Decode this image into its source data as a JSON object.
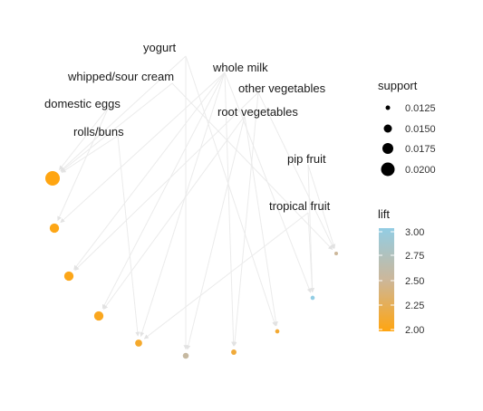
{
  "item_labels": [
    "yogurt",
    "whole milk",
    "whipped/sour cream",
    "other vegetables",
    "domestic eggs",
    "root vegetables",
    "rolls/buns",
    "pip fruit",
    "tropical fruit"
  ],
  "rules": [
    {
      "support": 0.0205,
      "lift": 2.0
    },
    {
      "support": 0.016,
      "lift": 2.02
    },
    {
      "support": 0.016,
      "lift": 2.03
    },
    {
      "support": 0.016,
      "lift": 2.05
    },
    {
      "support": 0.014,
      "lift": 2.1
    },
    {
      "support": 0.013,
      "lift": 2.55
    },
    {
      "support": 0.0125,
      "lift": 2.15
    },
    {
      "support": 0.0115,
      "lift": 2.12
    },
    {
      "support": 0.0115,
      "lift": 3.0
    },
    {
      "support": 0.011,
      "lift": 2.5
    }
  ],
  "legend_support": {
    "title": "support",
    "entries": [
      {
        "label": "0.0125",
        "value": 0.0125
      },
      {
        "label": "0.0150",
        "value": 0.015
      },
      {
        "label": "0.0175",
        "value": 0.0175
      },
      {
        "label": "0.0200",
        "value": 0.02
      }
    ]
  },
  "legend_lift": {
    "title": "lift",
    "ticks": [
      "3.00",
      "2.75",
      "2.50",
      "2.25",
      "2.00"
    ],
    "range": [
      2.0,
      3.0
    ],
    "color_low": "#FFA511",
    "color_mid": "#CCB79A",
    "color_high": "#92CDE4"
  },
  "edge_color": "#ebebeb",
  "edges": [
    [
      0,
      0
    ],
    [
      0,
      5
    ],
    [
      0,
      7
    ],
    [
      1,
      1
    ],
    [
      1,
      2
    ],
    [
      1,
      3
    ],
    [
      1,
      4
    ],
    [
      1,
      6
    ],
    [
      1,
      8
    ],
    [
      2,
      0
    ],
    [
      2,
      9
    ],
    [
      3,
      2
    ],
    [
      3,
      6
    ],
    [
      3,
      9
    ],
    [
      4,
      0
    ],
    [
      4,
      1
    ],
    [
      5,
      3
    ],
    [
      5,
      5
    ],
    [
      5,
      7
    ],
    [
      6,
      0
    ],
    [
      6,
      4
    ],
    [
      7,
      8
    ],
    [
      7,
      9
    ],
    [
      8,
      4
    ],
    [
      8,
      8
    ]
  ]
}
